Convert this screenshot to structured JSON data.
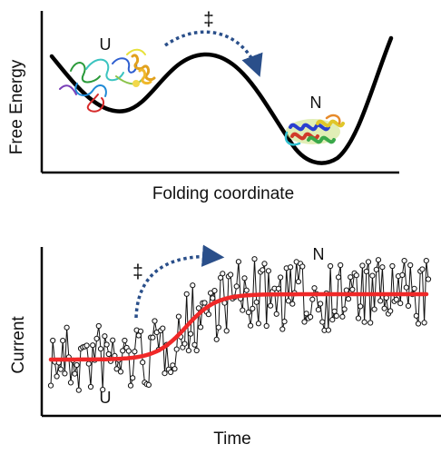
{
  "top_panel": {
    "y_axis_label": "Free Energy",
    "x_axis_label": "Folding coordinate",
    "unfolded_label": "U",
    "native_label": "N",
    "transition_label": "‡"
  },
  "bottom_panel": {
    "y_axis_label": "Current",
    "x_axis_label": "Time",
    "unfolded_label": "U",
    "native_label": "N",
    "transition_label": "‡"
  },
  "colors": {
    "curve": "#000000",
    "arrow": "#2a4f8a",
    "fit": "#f02828",
    "trace": "#111111",
    "marker_fill": "#ffffff"
  }
}
